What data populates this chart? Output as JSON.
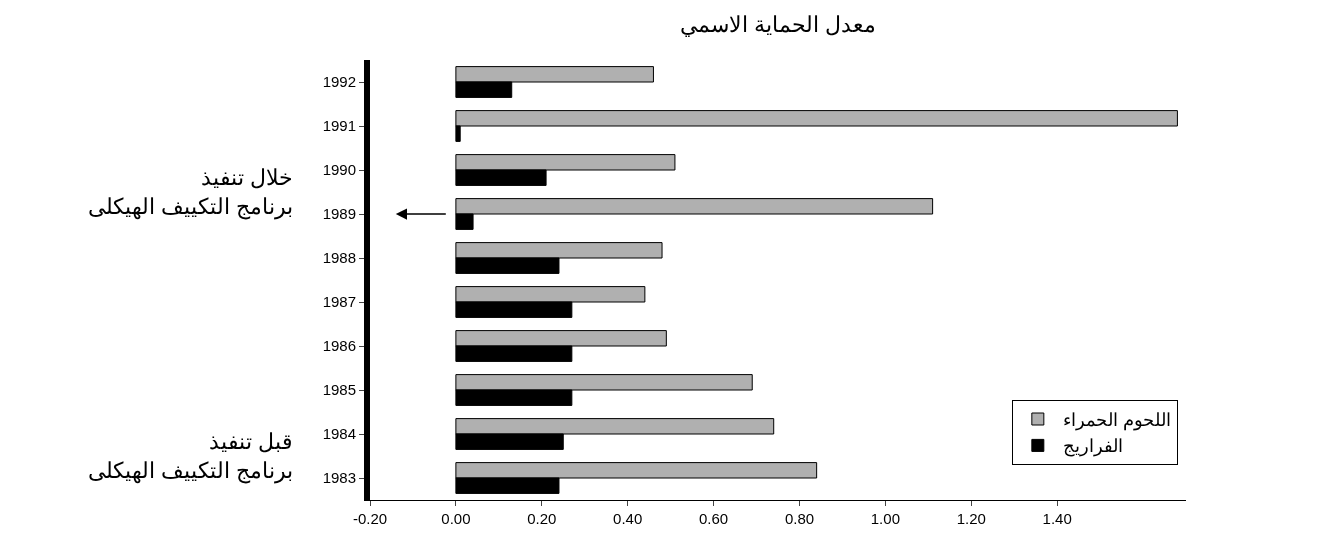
{
  "chart_data": {
    "type": "bar",
    "orientation": "horizontal",
    "title": "معدل الحماية الاسمي",
    "categories": [
      "1992",
      "1991",
      "1990",
      "1989",
      "1988",
      "1987",
      "1986",
      "1985",
      "1984",
      "1983"
    ],
    "series": [
      {
        "name": "اللحوم الحمراء",
        "color": "#b0b0b0",
        "values": [
          0.46,
          1.68,
          0.51,
          1.11,
          0.48,
          0.44,
          0.49,
          0.69,
          0.74,
          0.84
        ]
      },
      {
        "name": "الفراريج",
        "color": "#000000",
        "values": [
          0.13,
          0.01,
          0.21,
          0.04,
          0.24,
          0.27,
          0.27,
          0.27,
          0.25,
          0.24
        ]
      }
    ],
    "xlim": [
      -0.2,
      1.7
    ],
    "xticks": [
      {
        "value": -0.2,
        "label": "-0.20"
      },
      {
        "value": 0,
        "label": "0.00"
      },
      {
        "value": 0.2,
        "label": "0.20"
      },
      {
        "value": 0.4,
        "label": "0.40"
      },
      {
        "value": 0.6,
        "label": "0.60"
      },
      {
        "value": 0.8,
        "label": "0.80"
      },
      {
        "value": 1.0,
        "label": "1.00"
      },
      {
        "value": 1.2,
        "label": "1.20"
      },
      {
        "value": 1.4,
        "label": "1.40"
      }
    ],
    "annotations": [
      "خلال تنفيذ\nبرنامج التكييف الهيكلى",
      "قبل تنفيذ\nبرنامج التكييف الهيكلى"
    ],
    "legend": "bottom right"
  }
}
